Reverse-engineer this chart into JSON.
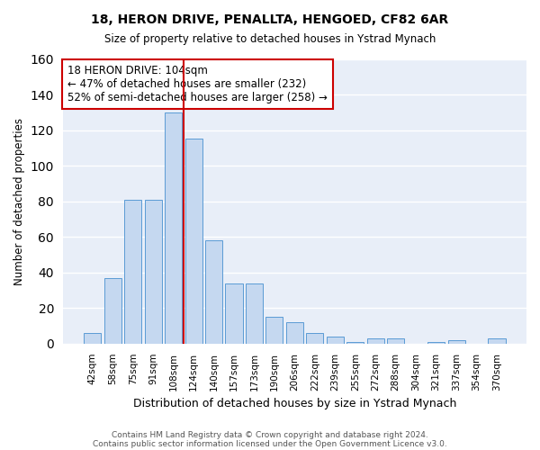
{
  "title1": "18, HERON DRIVE, PENALLTA, HENGOED, CF82 6AR",
  "title2": "Size of property relative to detached houses in Ystrad Mynach",
  "xlabel": "Distribution of detached houses by size in Ystrad Mynach",
  "ylabel": "Number of detached properties",
  "categories": [
    "42sqm",
    "58sqm",
    "75sqm",
    "91sqm",
    "108sqm",
    "124sqm",
    "140sqm",
    "157sqm",
    "173sqm",
    "190sqm",
    "206sqm",
    "222sqm",
    "239sqm",
    "255sqm",
    "272sqm",
    "288sqm",
    "304sqm",
    "321sqm",
    "337sqm",
    "354sqm",
    "370sqm"
  ],
  "values": [
    6,
    37,
    81,
    81,
    130,
    115,
    58,
    34,
    34,
    15,
    12,
    6,
    4,
    1,
    3,
    3,
    0,
    1,
    2,
    0,
    3
  ],
  "bar_color": "#c5d8f0",
  "bar_edge_color": "#5b9bd5",
  "vline_x": 4.5,
  "vline_color": "#cc0000",
  "annotation_text": "18 HERON DRIVE: 104sqm\n← 47% of detached houses are smaller (232)\n52% of semi-detached houses are larger (258) →",
  "annotation_box_color": "white",
  "annotation_box_edge": "#cc0000",
  "ylim": [
    0,
    160
  ],
  "yticks": [
    0,
    20,
    40,
    60,
    80,
    100,
    120,
    140,
    160
  ],
  "background_color": "#e8eef8",
  "grid_color": "white",
  "footer1": "Contains HM Land Registry data © Crown copyright and database right 2024.",
  "footer2": "Contains public sector information licensed under the Open Government Licence v3.0."
}
